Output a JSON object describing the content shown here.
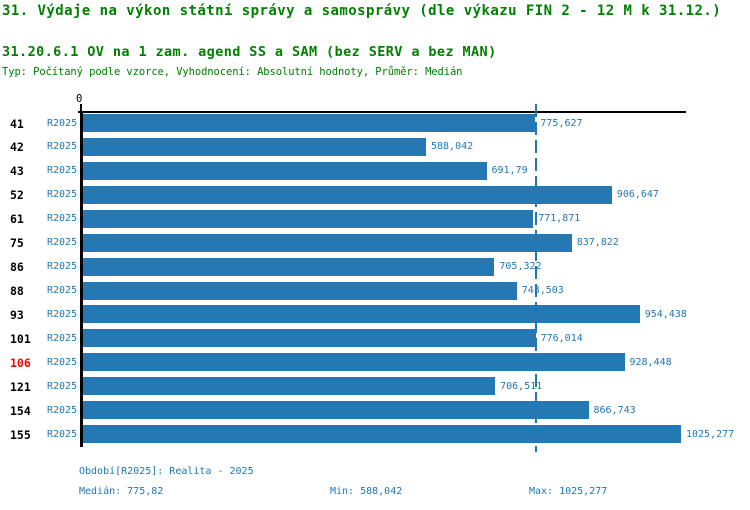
{
  "title": "31. Výdaje na výkon státní správy a samosprávy (dle výkazu FIN 2 - 12 M k 31.12.)",
  "subtitle": "31.20.6.1 OV na 1 zam. agend SS a SAM (bez SERV a bez MAN)",
  "meta": "Typ: Počítaný podle vzorce, Vyhodnocení: Absolutní hodnoty, Průměr: Medián",
  "colors": {
    "title_green": "#008000",
    "bar_blue": "#2478b4",
    "text_blue": "#1f77b4",
    "highlight_red": "#ff0000",
    "axis_black": "#000000"
  },
  "chart_data": {
    "type": "bar",
    "orientation": "horizontal",
    "title": "31.20.6.1 OV na 1 zam. agend SS a SAM (bez SERV a bez MAN)",
    "x_axis": {
      "origin_label": "0",
      "xmin": 0,
      "xmax": 1036,
      "grid": false
    },
    "median_line": {
      "value": 775.82,
      "label": "775,82"
    },
    "legend": "none",
    "rows": [
      {
        "id": "41",
        "period": "R2025",
        "value": 775.627,
        "value_label": "775,627",
        "highlight": false
      },
      {
        "id": "42",
        "period": "R2025",
        "value": 588.042,
        "value_label": "588,042",
        "highlight": false
      },
      {
        "id": "43",
        "period": "R2025",
        "value": 691.79,
        "value_label": "691,79",
        "highlight": false
      },
      {
        "id": "52",
        "period": "R2025",
        "value": 906.647,
        "value_label": "906,647",
        "highlight": false
      },
      {
        "id": "61",
        "period": "R2025",
        "value": 771.871,
        "value_label": "771,871",
        "highlight": false
      },
      {
        "id": "75",
        "period": "R2025",
        "value": 837.822,
        "value_label": "837,822",
        "highlight": false
      },
      {
        "id": "86",
        "period": "R2025",
        "value": 705.322,
        "value_label": "705,322",
        "highlight": false
      },
      {
        "id": "88",
        "period": "R2025",
        "value": 743.503,
        "value_label": "743,503",
        "highlight": false
      },
      {
        "id": "93",
        "period": "R2025",
        "value": 954.438,
        "value_label": "954,438",
        "highlight": false
      },
      {
        "id": "101",
        "period": "R2025",
        "value": 776.014,
        "value_label": "776,014",
        "highlight": false
      },
      {
        "id": "106",
        "period": "R2025",
        "value": 928.448,
        "value_label": "928,448",
        "highlight": true
      },
      {
        "id": "121",
        "period": "R2025",
        "value": 706.511,
        "value_label": "706,511",
        "highlight": false
      },
      {
        "id": "154",
        "period": "R2025",
        "value": 866.743,
        "value_label": "866,743",
        "highlight": false
      },
      {
        "id": "155",
        "period": "R2025",
        "value": 1025.277,
        "value_label": "1025,277",
        "highlight": false
      }
    ]
  },
  "footer": {
    "period_line": "Období[R2025]: Realita - 2025",
    "median_label": "Medián: 775,82",
    "min_label": "Min: 588,042",
    "max_label": "Max: 1025,277"
  }
}
